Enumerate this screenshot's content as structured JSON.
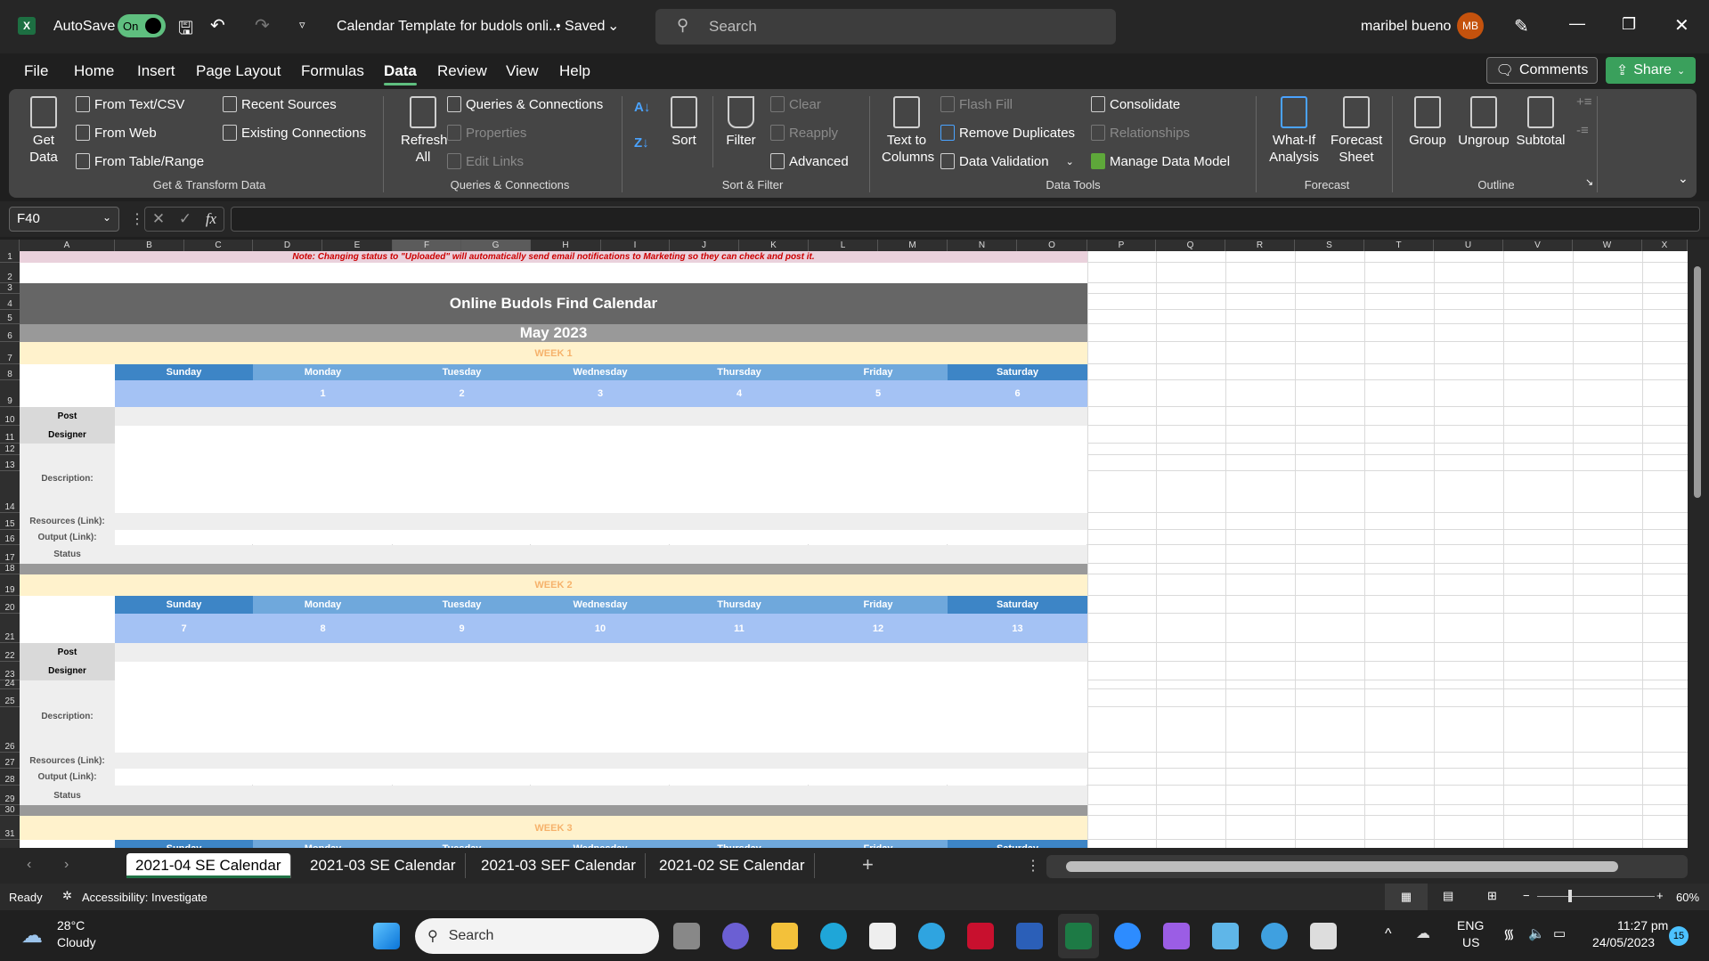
{
  "titlebar": {
    "autosave_label": "AutoSave",
    "autosave_state": "On",
    "doc_title": "Calendar Template for budols onli...",
    "save_state": "• Saved",
    "search_placeholder": "Search",
    "user_name": "maribel bueno",
    "user_initials": "MB"
  },
  "menu": {
    "tabs": [
      "File",
      "Home",
      "Insert",
      "Page Layout",
      "Formulas",
      "Data",
      "Review",
      "View",
      "Help"
    ],
    "active": "Data",
    "comments_label": "Comments",
    "share_label": "Share"
  },
  "ribbon": {
    "get_data": "Get Data",
    "from_text_csv": "From Text/CSV",
    "from_web": "From Web",
    "from_table_range": "From Table/Range",
    "recent_sources": "Recent Sources",
    "existing_connections": "Existing Connections",
    "group_get_transform": "Get & Transform Data",
    "refresh_all": "Refresh All",
    "queries_connections": "Queries & Connections",
    "properties": "Properties",
    "edit_links": "Edit Links",
    "group_queries": "Queries & Connections",
    "sort": "Sort",
    "filter": "Filter",
    "clear": "Clear",
    "reapply": "Reapply",
    "advanced": "Advanced",
    "group_sort_filter": "Sort & Filter",
    "text_to_columns": "Text to Columns",
    "flash_fill": "Flash Fill",
    "remove_duplicates": "Remove Duplicates",
    "data_validation": "Data Validation",
    "consolidate": "Consolidate",
    "relationships": "Relationships",
    "manage_data_model": "Manage Data Model",
    "group_data_tools": "Data Tools",
    "what_if": "What-If Analysis",
    "forecast_sheet": "Forecast Sheet",
    "group_forecast": "Forecast",
    "group": "Group",
    "ungroup": "Ungroup",
    "subtotal": "Subtotal",
    "group_outline": "Outline"
  },
  "formula_bar": {
    "name_box": "F40",
    "formula": ""
  },
  "columns": [
    "A",
    "B",
    "C",
    "D",
    "E",
    "F",
    "G",
    "H",
    "I",
    "J",
    "K",
    "L",
    "M",
    "N",
    "O",
    "P",
    "Q",
    "R",
    "S",
    "T",
    "U",
    "V",
    "W",
    "X"
  ],
  "selected_columns": [
    "F",
    "G"
  ],
  "sheet": {
    "note": "Note: Changing status to \"Uploaded\" will automatically send email notifications to Marketing so they can check and post it.",
    "title": "Online Budols Find Calendar",
    "month": "May 2023",
    "days": [
      "Sunday",
      "Monday",
      "Tuesday",
      "Wednesday",
      "Thursday",
      "Friday",
      "Saturday"
    ],
    "labels": {
      "post": "Post",
      "designer": "Designer",
      "description": "Description:",
      "resources": "Resources (Link):",
      "output": "Output (Link):",
      "status": "Status"
    },
    "weeks": [
      {
        "label": "WEEK 1",
        "dates": [
          "",
          "1",
          "2",
          "3",
          "4",
          "5",
          "6"
        ]
      },
      {
        "label": "WEEK 2",
        "dates": [
          "7",
          "8",
          "9",
          "10",
          "11",
          "12",
          "13"
        ]
      },
      {
        "label": "WEEK 3",
        "dates": []
      }
    ],
    "colors": {
      "weekend_header": "#3d85c6",
      "weekday_header": "#6fa8dc",
      "dates_row": "#a4c2f4",
      "week_band": "#fff2cc",
      "week_text": "#f6b26b",
      "title_band": "#666666",
      "month_band": "#999999",
      "note_bg": "#ead1dc",
      "note_text": "#cc0000"
    }
  },
  "sheet_tabs": [
    "2021-04 SE Calendar",
    "2021-03 SE Calendar",
    "2021-03 SEF Calendar",
    "2021-02 SE Calendar"
  ],
  "active_sheet": "2021-04 SE Calendar",
  "status_bar": {
    "ready": "Ready",
    "accessibility": "Accessibility: Investigate",
    "zoom": "60%",
    "zoom_value": 60
  },
  "taskbar": {
    "weather_temp": "28°C",
    "weather_desc": "Cloudy",
    "search": "Search",
    "lang": "ENG",
    "region": "US",
    "time": "11:27 pm",
    "date": "24/05/2023",
    "notifications": "15",
    "apps": [
      "windows-start",
      "task-view",
      "teams",
      "file-explorer",
      "edge",
      "microsoft-store",
      "help",
      "mcafee",
      "word",
      "excel",
      "zoom",
      "clipchamp",
      "notepad",
      "paint",
      "snipping-tool"
    ]
  }
}
